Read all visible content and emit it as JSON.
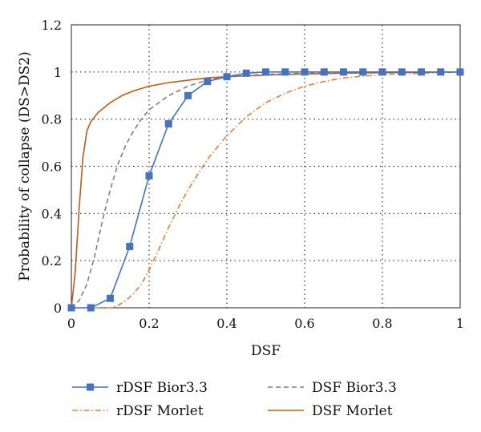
{
  "chart_data": {
    "type": "line",
    "title": "",
    "xlabel": "DSF",
    "ylabel": "Probability of collapse (DS>DS2)",
    "xlim": [
      0,
      1
    ],
    "ylim": [
      0,
      1.2
    ],
    "x_ticks": [
      "0",
      "0.2",
      "0.4",
      "0.6",
      "0.8",
      "1"
    ],
    "y_ticks": [
      "0",
      "0.2",
      "0.4",
      "0.6",
      "0.8",
      "1",
      "1.2"
    ],
    "grid": "dotted",
    "legend_position": "bottom",
    "series": [
      {
        "name": "rDSF Bior3.3",
        "color": "#4472C4",
        "style": "solid-square-markers",
        "x": [
          0,
          0.05,
          0.1,
          0.15,
          0.2,
          0.25,
          0.3,
          0.35,
          0.4,
          0.45,
          0.5,
          0.55,
          0.6,
          0.65,
          0.7,
          0.75,
          0.8,
          0.85,
          0.9,
          0.95,
          1.0
        ],
        "y": [
          0,
          0,
          0.04,
          0.26,
          0.56,
          0.78,
          0.9,
          0.96,
          0.98,
          0.995,
          1.0,
          1.0,
          1.0,
          1.0,
          1.0,
          1.0,
          1.0,
          1.0,
          1.0,
          1.0,
          1.0
        ]
      },
      {
        "name": "DSF Bior3.3",
        "color": "#7F7F7F",
        "style": "dashed",
        "x": [
          0,
          0.02,
          0.04,
          0.06,
          0.08,
          0.1,
          0.12,
          0.14,
          0.16,
          0.18,
          0.2,
          0.25,
          0.3,
          0.35,
          0.4,
          0.5,
          0.6,
          0.7,
          0.8,
          0.9,
          1.0
        ],
        "y": [
          0,
          0.03,
          0.1,
          0.22,
          0.37,
          0.5,
          0.61,
          0.69,
          0.75,
          0.8,
          0.84,
          0.9,
          0.94,
          0.965,
          0.98,
          0.99,
          0.995,
          0.998,
          1.0,
          1.0,
          1.0
        ]
      },
      {
        "name": "rDSF Morlet",
        "color": "#ED7D31",
        "style": "dash-dot",
        "x": [
          0,
          0.1,
          0.12,
          0.14,
          0.16,
          0.18,
          0.2,
          0.22,
          0.25,
          0.28,
          0.3,
          0.35,
          0.4,
          0.45,
          0.5,
          0.55,
          0.6,
          0.65,
          0.7,
          0.8,
          0.9,
          1.0
        ],
        "y": [
          0,
          0.0,
          0.01,
          0.03,
          0.06,
          0.1,
          0.16,
          0.23,
          0.34,
          0.44,
          0.5,
          0.63,
          0.73,
          0.81,
          0.87,
          0.91,
          0.94,
          0.96,
          0.975,
          0.99,
          0.995,
          1.0
        ]
      },
      {
        "name": "DSF Morlet",
        "color": "#C55A11",
        "style": "solid",
        "x": [
          0,
          0.01,
          0.02,
          0.03,
          0.04,
          0.05,
          0.07,
          0.1,
          0.13,
          0.16,
          0.2,
          0.25,
          0.3,
          0.35,
          0.4,
          0.5,
          0.6,
          0.7,
          0.8,
          0.9,
          1.0
        ],
        "y": [
          0,
          0.15,
          0.42,
          0.64,
          0.75,
          0.79,
          0.83,
          0.87,
          0.9,
          0.92,
          0.94,
          0.955,
          0.965,
          0.975,
          0.98,
          0.987,
          0.992,
          0.995,
          0.997,
          0.999,
          1.0
        ]
      }
    ]
  }
}
